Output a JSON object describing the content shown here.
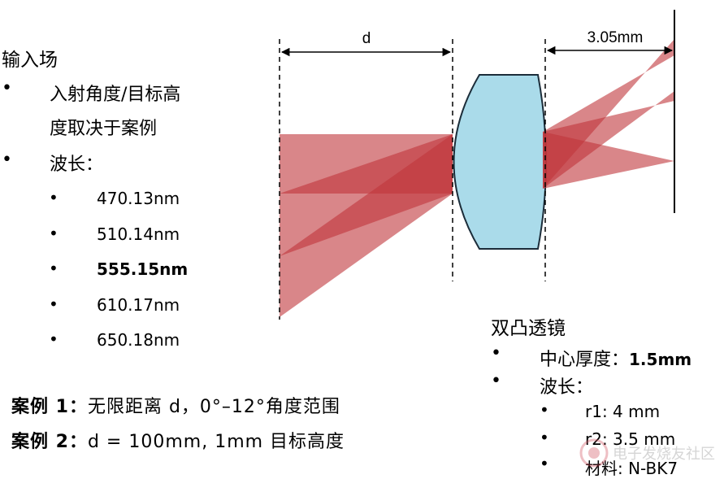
{
  "input_field": {
    "title": "输入场",
    "bullet1_line1": "入射角度/目标高",
    "bullet1_line2": "度取决于案例",
    "bullet2": "波长：",
    "wavelengths": [
      "470.13nm",
      "510.14nm",
      "555.15nm",
      "610.17nm",
      "650.18nm"
    ],
    "bold_wavelength_index": 2
  },
  "cases": {
    "case1_label": "案例 1：",
    "case1_text": "无限距离 d，0°–12°角度范围",
    "case2_label": "案例 2：",
    "case2_text": "d = 100mm, 1mm 目标高度"
  },
  "diagram": {
    "d_label": "d",
    "distance_label": "3.05mm",
    "beam_color": "#c0353a",
    "lens_color": "#aadbea"
  },
  "lens": {
    "title": "双凸透镜",
    "thickness_label": "中心厚度：",
    "thickness_value": "1.5mm",
    "wavelength_label": "波长：",
    "r1": "r1: 4 mm",
    "r2": "r2: 3.5 mm",
    "material": "材料: N-BK7"
  },
  "watermark": {
    "text": "电子发烧友社区"
  }
}
